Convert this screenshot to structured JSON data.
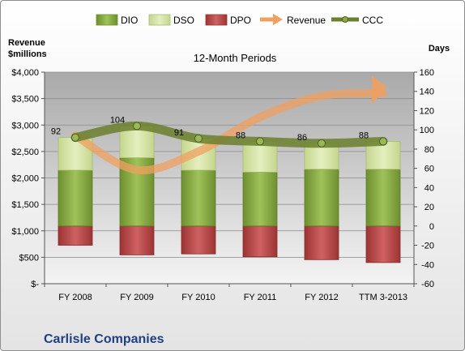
{
  "company": "Carlisle Companies",
  "colors": {
    "dio": "#7ea13d",
    "dso": "#d7e4a6",
    "dpo": "#b9494a",
    "revenue": "#f0a060",
    "ccc": "#6b7f2e"
  },
  "chart_data": {
    "type": "bar",
    "title": "12-Month Periods",
    "y_left_label_line1": "Revenue",
    "y_left_label_line2": "$millions",
    "y_right_label": "Days",
    "categories": [
      "FY 2008",
      "FY 2009",
      "FY 2010",
      "FY 2011",
      "FY 2012",
      "TTM 3-2013"
    ],
    "y_left_lim": [
      0,
      4000
    ],
    "y_left_ticks": [
      "$-",
      "$500",
      "$1,000",
      "$1,500",
      "$2,000",
      "$2,500",
      "$3,000",
      "$3,500",
      "$4,000"
    ],
    "y_right_lim": [
      -60,
      160
    ],
    "y_right_ticks": [
      "-60",
      "-40",
      "-20",
      "0",
      "20",
      "40",
      "60",
      "80",
      "100",
      "120",
      "140",
      "160"
    ],
    "grid": true,
    "legend_position": "top",
    "series": [
      {
        "name": "DIO",
        "type": "bar",
        "axis": "right",
        "values": [
          58,
          71,
          58,
          56,
          59,
          59
        ]
      },
      {
        "name": "DSO",
        "type": "stacked-bar",
        "axis": "right",
        "values": [
          34,
          33,
          33,
          32,
          27,
          29
        ]
      },
      {
        "name": "DPO",
        "type": "bar-below-zero",
        "axis": "right",
        "values": [
          -20,
          -30,
          -29,
          -32,
          -35,
          -38
        ]
      },
      {
        "name": "Revenue",
        "type": "line-arrow",
        "axis": "left",
        "values": [
          2800,
          2150,
          2500,
          3150,
          3550,
          3600
        ]
      },
      {
        "name": "CCC",
        "type": "line",
        "axis": "right",
        "values": [
          92,
          104,
          91,
          88,
          86,
          88
        ]
      }
    ],
    "ccc_labels": [
      "92",
      "104",
      "91",
      "88",
      "86",
      "88"
    ]
  }
}
